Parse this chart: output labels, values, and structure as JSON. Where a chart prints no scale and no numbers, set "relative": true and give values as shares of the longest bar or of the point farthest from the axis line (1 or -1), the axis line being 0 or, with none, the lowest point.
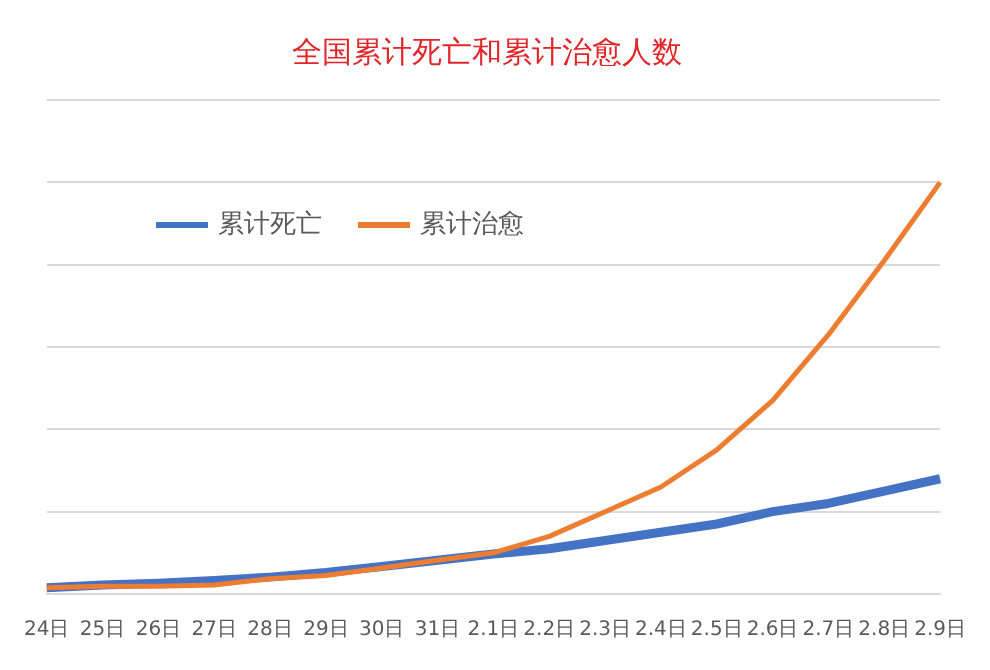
{
  "chart_data": {
    "type": "line",
    "title": "全国累计死亡和累计治愈人数",
    "relative": true,
    "grid": "y",
    "legend": "top left",
    "marker": "none",
    "categories": [
      "24日",
      "25日",
      "26日",
      "27日",
      "28日",
      "29日",
      "30日",
      "31日",
      "2.1日",
      "2.2日",
      "2.3日",
      "2.4日",
      "2.5日",
      "2.6日",
      "2.7日",
      "2.8日",
      "2.9日"
    ],
    "series": [
      {
        "name": "累计死亡",
        "color": "#4472c4",
        "values": [
          0.015,
          0.022,
          0.026,
          0.033,
          0.041,
          0.052,
          0.067,
          0.082,
          0.097,
          0.11,
          0.13,
          0.15,
          0.17,
          0.2,
          0.22,
          0.25,
          0.28
        ]
      },
      {
        "name": "累计治愈",
        "color": "#ed7d31",
        "values": [
          0.015,
          0.019,
          0.019,
          0.022,
          0.037,
          0.045,
          0.063,
          0.082,
          0.1,
          0.14,
          0.2,
          0.26,
          0.35,
          0.47,
          0.63,
          0.81,
          1
        ]
      }
    ]
  }
}
